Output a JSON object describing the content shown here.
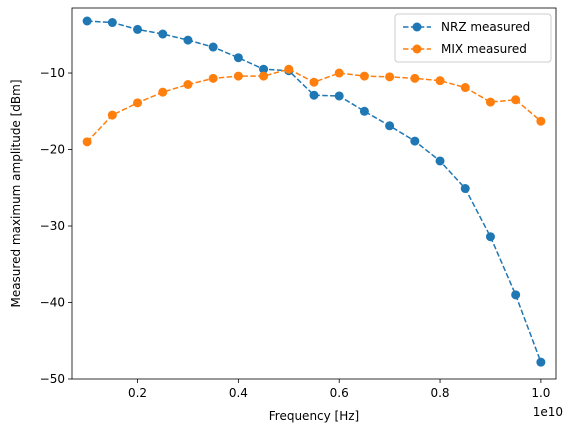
{
  "chart_data": {
    "type": "line",
    "title": "",
    "xlabel": "Frequency [Hz]",
    "ylabel": "Measured maximum amplitude [dBm]",
    "x_offset_label": "1e10",
    "xlim": [
      0.07,
      1.03
    ],
    "ylim": [
      -50,
      -1.5
    ],
    "xticks": [
      0.2,
      0.4,
      0.6,
      0.8,
      1.0
    ],
    "xtick_labels": [
      "0.2",
      "0.4",
      "0.6",
      "0.8",
      "1.0"
    ],
    "yticks": [
      -50,
      -40,
      -30,
      -20,
      -10
    ],
    "ytick_labels": [
      "−50",
      "−40",
      "−30",
      "−20",
      "−10"
    ],
    "grid": false,
    "legend_position": "top-right",
    "x": [
      0.1,
      0.15,
      0.2,
      0.25,
      0.3,
      0.35,
      0.4,
      0.45,
      0.5,
      0.55,
      0.6,
      0.65,
      0.7,
      0.75,
      0.8,
      0.85,
      0.9,
      0.95,
      1.0
    ],
    "series": [
      {
        "name": "NRZ measured",
        "color": "#1f77b4",
        "values": [
          -3.2,
          -3.4,
          -4.3,
          -4.9,
          -5.7,
          -6.6,
          -8.0,
          -9.5,
          -9.7,
          -12.9,
          -13.0,
          -15.0,
          -16.9,
          -18.9,
          -21.5,
          -25.1,
          -31.4,
          -39.0,
          -47.8
        ]
      },
      {
        "name": "MIX measured",
        "color": "#ff7f0e",
        "values": [
          -19.0,
          -15.5,
          -13.9,
          -12.5,
          -11.5,
          -10.7,
          -10.4,
          -10.4,
          -9.5,
          -11.2,
          -10.0,
          -10.4,
          -10.5,
          -10.7,
          -11.0,
          -11.9,
          -13.8,
          -13.5,
          -16.3
        ]
      }
    ]
  }
}
